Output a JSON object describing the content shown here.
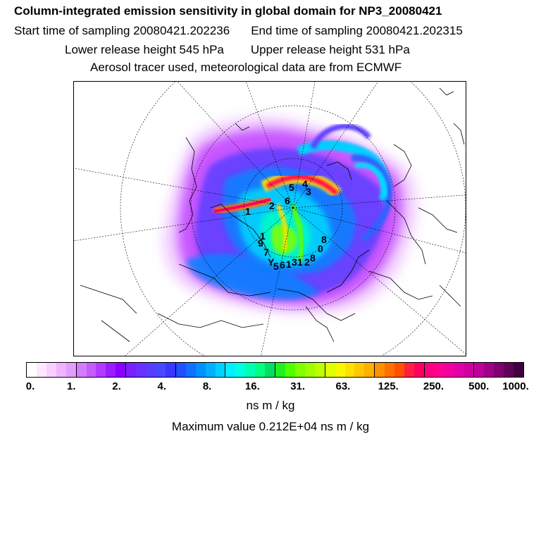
{
  "title": "Column-integrated emission sensitivity in global domain for NP3_20080421",
  "sampling": {
    "start": "Start time of sampling 20080421.202236",
    "end": "End time of sampling 20080421.202315"
  },
  "release": {
    "lower": "Lower release height  545 hPa",
    "upper": "Upper release height  531 hPa"
  },
  "note": "Aerosol tracer used, meteorological data are from ECMWF",
  "colorbar": {
    "ticks": [
      "0.",
      "1.",
      "2.",
      "4.",
      "8.",
      "16.",
      "31.",
      "63.",
      "125.",
      "250.",
      "500.",
      "1000."
    ],
    "unit": "ns m / kg",
    "colors": [
      "#ffffff",
      "#fde8ff",
      "#f8d0ff",
      "#f0b4ff",
      "#e49cff",
      "#d47cff",
      "#c45cff",
      "#b03cff",
      "#9a1cff",
      "#8a00ff",
      "#7a20ff",
      "#6a30ff",
      "#5a3cff",
      "#4848ff",
      "#3838ff",
      "#2050ff",
      "#1070ff",
      "#0090ff",
      "#00b0ff",
      "#00d0ff",
      "#00f0ff",
      "#00ffe0",
      "#00ffb0",
      "#00ff80",
      "#00e060",
      "#20f020",
      "#50ff00",
      "#80ff00",
      "#a0ff00",
      "#c0ff00",
      "#e0ff00",
      "#f8f800",
      "#ffe000",
      "#ffc800",
      "#ffb000",
      "#ff9000",
      "#ff7000",
      "#ff5000",
      "#ff2040",
      "#ff0060",
      "#ff0080",
      "#ff0090",
      "#f000a0",
      "#e000a8",
      "#d000a0",
      "#c00098",
      "#a00088",
      "#800070",
      "#600058",
      "#400040"
    ]
  },
  "maximum": "Maximum value  0.212E+04 ns m / kg",
  "release_labels": [
    {
      "n": "1",
      "lon_note": ""
    },
    {
      "n": "2"
    },
    {
      "n": "6"
    },
    {
      "n": "5"
    },
    {
      "n": "4"
    },
    {
      "n": "3"
    },
    {
      "n": "8"
    },
    {
      "n": "0"
    },
    {
      "n": "9"
    },
    {
      "n": "7"
    },
    {
      "n": "1"
    },
    {
      "n": "2"
    },
    {
      "n": "3"
    },
    {
      "n": "1"
    },
    {
      "n": "6"
    },
    {
      "n": "5"
    },
    {
      "n": "Y"
    },
    {
      "n": "1"
    },
    {
      "n": "8"
    }
  ]
}
